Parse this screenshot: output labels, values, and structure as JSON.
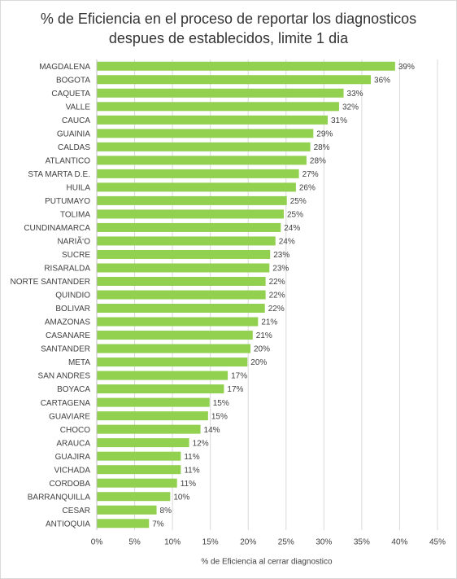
{
  "chart_data": {
    "type": "barh",
    "title": "% de Eficiencia en el proceso de reportar los diagnosticos despues de establecidos, limite 1 dia",
    "xlabel": "% de Eficiencia al cerrar diagnostico",
    "categories": [
      "MAGDALENA",
      "BOGOTA",
      "CAQUETA",
      "VALLE",
      "CAUCA",
      "GUAINIA",
      "CALDAS",
      "ATLANTICO",
      "STA MARTA D.E.",
      "HUILA",
      "PUTUMAYO",
      "TOLIMA",
      "CUNDINAMARCA",
      "NARIÃ‘O",
      "SUCRE",
      "RISARALDA",
      "NORTE SANTANDER",
      "QUINDIO",
      "BOLIVAR",
      "AMAZONAS",
      "CASANARE",
      "SANTANDER",
      "META",
      "SAN ANDRES",
      "BOYACA",
      "CARTAGENA",
      "GUAVIARE",
      "CHOCO",
      "ARAUCA",
      "GUAJIRA",
      "VICHADA",
      "CORDOBA",
      "BARRANQUILLA",
      "CESAR",
      "ANTIOQUIA"
    ],
    "values": [
      39.4,
      36.2,
      32.6,
      32.0,
      30.5,
      28.6,
      28.2,
      27.7,
      26.7,
      26.3,
      25.1,
      24.7,
      24.3,
      23.6,
      22.9,
      22.8,
      22.3,
      22.3,
      22.2,
      21.3,
      20.6,
      20.3,
      19.9,
      17.3,
      16.8,
      14.9,
      14.7,
      13.7,
      12.2,
      11.1,
      11.1,
      10.6,
      9.7,
      7.9,
      6.9
    ],
    "value_labels": [
      "39%",
      "36%",
      "33%",
      "32%",
      "31%",
      "29%",
      "28%",
      "28%",
      "27%",
      "26%",
      "25%",
      "25%",
      "24%",
      "24%",
      "23%",
      "23%",
      "22%",
      "22%",
      "22%",
      "21%",
      "21%",
      "20%",
      "20%",
      "17%",
      "17%",
      "15%",
      "15%",
      "14%",
      "12%",
      "11%",
      "11%",
      "11%",
      "10%",
      "8%",
      "7%"
    ],
    "color": "#92d050",
    "xlim": [
      0,
      45
    ],
    "xticks": [
      {
        "value": 0,
        "label": "0%"
      },
      {
        "value": 5,
        "label": "5%"
      },
      {
        "value": 10,
        "label": "10%"
      },
      {
        "value": 15,
        "label": "15%"
      },
      {
        "value": 20,
        "label": "20%"
      },
      {
        "value": 25,
        "label": "25%"
      },
      {
        "value": 30,
        "label": "30%"
      },
      {
        "value": 35,
        "label": "35%"
      },
      {
        "value": 40,
        "label": "40%"
      },
      {
        "value": 45,
        "label": "45%"
      }
    ],
    "grid": true
  }
}
